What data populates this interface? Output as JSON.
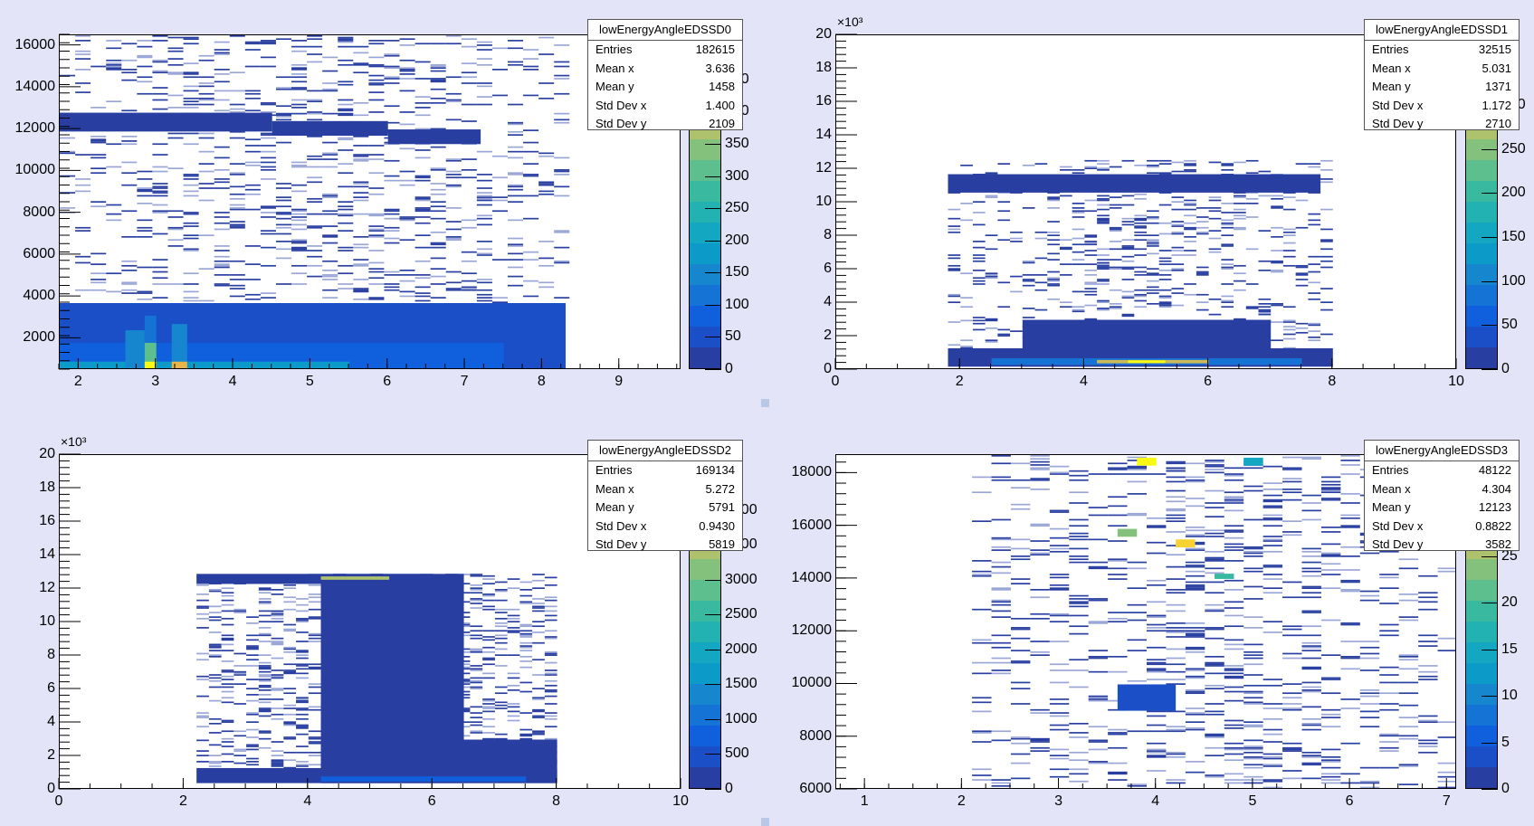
{
  "canvas": {
    "background": "#e3e4f7"
  },
  "palette_colors": [
    "#283ea0",
    "#1a4fc8",
    "#1060dd",
    "#1573d6",
    "#1686cf",
    "#0c9ac8",
    "#13a7c1",
    "#23b2b2",
    "#38b9a0",
    "#5ebf8e",
    "#84c17c",
    "#aec16c",
    "#cdb85a",
    "#e9b548",
    "#f8d232",
    "#f9fa14"
  ],
  "chart_data": [
    {
      "type": "heatmap",
      "name": "lowEnergyAngleEDSSD0",
      "xlim": [
        1.75,
        9.8
      ],
      "ylim": [
        500,
        16500
      ],
      "x_ticks": [
        2,
        3,
        4,
        5,
        6,
        7,
        8,
        9
      ],
      "x_tick_labels": [
        "2",
        "3",
        "4",
        "5",
        "6",
        "7",
        "8",
        "9"
      ],
      "y_ticks": [
        2000,
        4000,
        6000,
        8000,
        10000,
        12000,
        14000,
        16000
      ],
      "y_tick_labels": [
        "2000",
        "4000",
        "6000",
        "8000",
        "10000",
        "12000",
        "14000",
        "16000"
      ],
      "y_exponent": "",
      "z_ticks": [
        0,
        50,
        100,
        150,
        200,
        250,
        300,
        350,
        400,
        450
      ],
      "z_tick_labels": [
        "0",
        "50",
        "100",
        "150",
        "200",
        "250",
        "300",
        "350",
        "400",
        "450"
      ],
      "z_max": 520,
      "stats": {
        "title": "lowEnergyAngleEDSSD0",
        "entries": "182615",
        "mean_x": "3.636",
        "mean_y": "1458",
        "std_dev_x": "1.400",
        "std_dev_y": "2109"
      },
      "regions": [
        {
          "x0": 1.75,
          "x1": 8.3,
          "y0": 500,
          "y1": 3700,
          "level": 1
        },
        {
          "x0": 1.75,
          "x1": 7.5,
          "y0": 500,
          "y1": 1800,
          "level": 2
        },
        {
          "x0": 1.75,
          "x1": 5.5,
          "y0": 500,
          "y1": 900,
          "level": 5
        },
        {
          "x0": 2.6,
          "x1": 2.85,
          "y0": 500,
          "y1": 2400,
          "level": 4
        },
        {
          "x0": 2.85,
          "x1": 3.0,
          "y0": 500,
          "y1": 3100,
          "level": 3
        },
        {
          "x0": 2.85,
          "x1": 3.0,
          "y0": 500,
          "y1": 1800,
          "level": 9
        },
        {
          "x0": 2.85,
          "x1": 3.0,
          "y0": 500,
          "y1": 900,
          "level": 15
        },
        {
          "x0": 3.2,
          "x1": 3.4,
          "y0": 500,
          "y1": 2700,
          "level": 4
        },
        {
          "x0": 3.2,
          "x1": 3.4,
          "y0": 500,
          "y1": 900,
          "level": 13
        },
        {
          "x0": 1.75,
          "x1": 4.5,
          "y0": 11900,
          "y1": 12800,
          "level": 0
        },
        {
          "x0": 4.5,
          "x1": 6.0,
          "y0": 11700,
          "y1": 12400,
          "level": 0
        },
        {
          "x0": 6.0,
          "x1": 7.2,
          "y0": 11300,
          "y1": 12000,
          "level": 0
        }
      ],
      "scatter_density": 0.18,
      "scatter_xrange": [
        1.75,
        8.3
      ],
      "scatter_yrange": [
        3700,
        16500
      ]
    },
    {
      "type": "heatmap",
      "name": "lowEnergyAngleEDSSD1",
      "xlim": [
        0,
        10
      ],
      "ylim": [
        0,
        20000
      ],
      "x_ticks": [
        0,
        2,
        4,
        6,
        8,
        10
      ],
      "x_tick_labels": [
        "0",
        "2",
        "4",
        "6",
        "8",
        "10"
      ],
      "y_ticks": [
        0,
        2000,
        4000,
        6000,
        8000,
        10000,
        12000,
        14000,
        16000,
        18000,
        20000
      ],
      "y_tick_labels": [
        "0",
        "2",
        "4",
        "6",
        "8",
        "10",
        "12",
        "14",
        "16",
        "18",
        "20"
      ],
      "y_exponent": "×10³",
      "z_ticks": [
        0,
        50,
        100,
        150,
        200,
        250,
        300
      ],
      "z_tick_labels": [
        "0",
        "50",
        "100",
        "150",
        "200",
        "250",
        "300"
      ],
      "z_max": 380,
      "stats": {
        "title": "lowEnergyAngleEDSSD1",
        "entries": "32515",
        "mean_x": "5.031",
        "mean_y": "1371",
        "std_dev_x": "1.172",
        "std_dev_y": "2710"
      },
      "regions": [
        {
          "x0": 1.8,
          "x1": 8.0,
          "y0": 200,
          "y1": 1300,
          "level": 0
        },
        {
          "x0": 3.0,
          "x1": 7.0,
          "y0": 200,
          "y1": 3000,
          "level": 0
        },
        {
          "x0": 2.5,
          "x1": 7.5,
          "y0": 300,
          "y1": 700,
          "level": 3
        },
        {
          "x0": 4.2,
          "x1": 6.0,
          "y0": 400,
          "y1": 600,
          "level": 12
        },
        {
          "x0": 4.7,
          "x1": 5.3,
          "y0": 420,
          "y1": 580,
          "level": 15
        },
        {
          "x0": 1.8,
          "x1": 7.8,
          "y0": 10600,
          "y1": 11700,
          "level": 0
        }
      ],
      "scatter_density": 0.22,
      "scatter_xrange": [
        1.8,
        8.0
      ],
      "scatter_yrange": [
        1000,
        12500
      ]
    },
    {
      "type": "heatmap",
      "name": "lowEnergyAngleEDSSD2",
      "xlim": [
        0,
        10
      ],
      "ylim": [
        0,
        20000
      ],
      "x_ticks": [
        0,
        2,
        4,
        6,
        8,
        10
      ],
      "x_tick_labels": [
        "0",
        "2",
        "4",
        "6",
        "8",
        "10"
      ],
      "y_ticks": [
        0,
        2000,
        4000,
        6000,
        8000,
        10000,
        12000,
        14000,
        16000,
        18000,
        20000
      ],
      "y_tick_labels": [
        "0",
        "2",
        "4",
        "6",
        "8",
        "10",
        "12",
        "14",
        "16",
        "18",
        "20"
      ],
      "y_exponent": "×10³",
      "z_ticks": [
        0,
        500,
        1000,
        1500,
        2000,
        2500,
        3000,
        3500,
        4000
      ],
      "z_tick_labels": [
        "0",
        "500",
        "1000",
        "1500",
        "2000",
        "2500",
        "3000",
        "3500",
        "4000"
      ],
      "z_max": 4800,
      "stats": {
        "title": "lowEnergyAngleEDSSD2",
        "entries": "169134",
        "mean_x": "5.272",
        "mean_y": "5791",
        "std_dev_x": "0.9430",
        "std_dev_y": "5819"
      },
      "regions": [
        {
          "x0": 2.2,
          "x1": 8.0,
          "y0": 400,
          "y1": 1300,
          "level": 0
        },
        {
          "x0": 4.2,
          "x1": 8.0,
          "y0": 400,
          "y1": 3000,
          "level": 0
        },
        {
          "x0": 4.2,
          "x1": 6.5,
          "y0": 400,
          "y1": 12900,
          "level": 0
        },
        {
          "x0": 4.2,
          "x1": 7.5,
          "y0": 500,
          "y1": 800,
          "level": 2
        },
        {
          "x0": 2.2,
          "x1": 6.0,
          "y0": 12300,
          "y1": 12900,
          "level": 0
        },
        {
          "x0": 4.2,
          "x1": 5.3,
          "y0": 12550,
          "y1": 12750,
          "level": 11
        }
      ],
      "scatter_density": 0.35,
      "scatter_xrange": [
        2.2,
        8.0
      ],
      "scatter_yrange": [
        1000,
        12900
      ]
    },
    {
      "type": "heatmap",
      "name": "lowEnergyAngleEDSSD3",
      "xlim": [
        0.7,
        7.1
      ],
      "ylim": [
        6000,
        18700
      ],
      "x_ticks": [
        1,
        2,
        3,
        4,
        5,
        6,
        7
      ],
      "x_tick_labels": [
        "1",
        "2",
        "3",
        "4",
        "5",
        "6",
        "7"
      ],
      "y_ticks": [
        6000,
        8000,
        10000,
        12000,
        14000,
        16000,
        18000
      ],
      "y_tick_labels": [
        "6000",
        "8000",
        "10000",
        "12000",
        "14000",
        "16000",
        "18000"
      ],
      "y_exponent": "",
      "z_ticks": [
        0,
        5,
        10,
        15,
        20,
        25,
        30
      ],
      "z_tick_labels": [
        "0",
        "5",
        "10",
        "15",
        "20",
        "25",
        "30"
      ],
      "z_max": 36,
      "stats": {
        "title": "lowEnergyAngleEDSSD3",
        "entries": "48122",
        "mean_x": "4.304",
        "mean_y": "12123",
        "std_dev_x": "0.8822",
        "std_dev_y": "3582"
      },
      "regions": [
        {
          "x0": 3.8,
          "x1": 4.0,
          "y0": 18300,
          "y1": 18600,
          "level": 15
        },
        {
          "x0": 4.2,
          "x1": 4.4,
          "y0": 15200,
          "y1": 15500,
          "level": 14
        },
        {
          "x0": 3.6,
          "x1": 3.8,
          "y0": 15600,
          "y1": 15900,
          "level": 10
        },
        {
          "x0": 4.6,
          "x1": 4.8,
          "y0": 14000,
          "y1": 14200,
          "level": 8
        },
        {
          "x0": 4.9,
          "x1": 5.1,
          "y0": 18300,
          "y1": 18600,
          "level": 6
        },
        {
          "x0": 3.6,
          "x1": 4.2,
          "y0": 9000,
          "y1": 10000,
          "level": 1
        }
      ],
      "scatter_density": 0.2,
      "scatter_xrange": [
        2.0,
        7.1
      ],
      "scatter_yrange": [
        6000,
        18700
      ]
    }
  ]
}
